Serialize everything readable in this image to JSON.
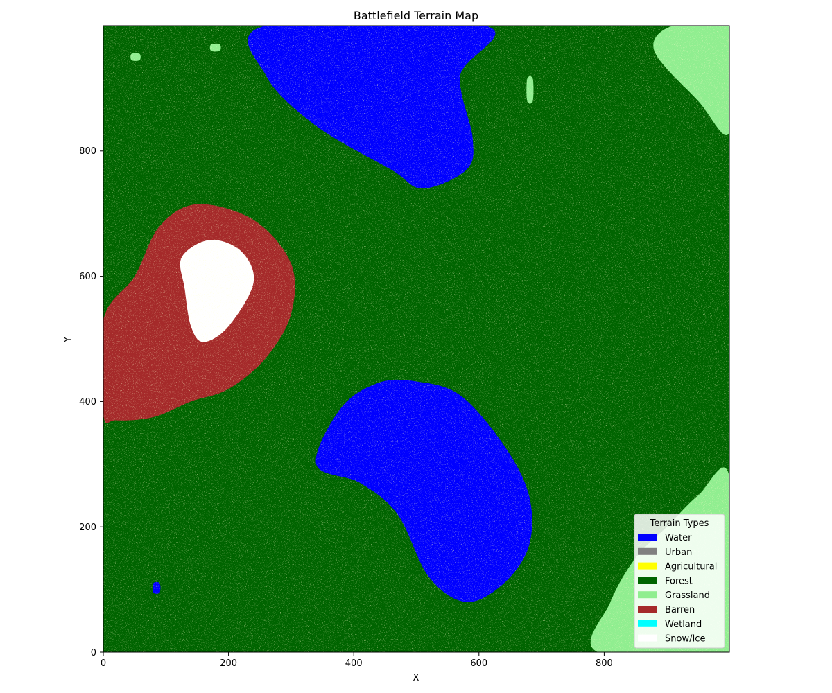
{
  "map": {
    "title": "Battlefield Terrain Map",
    "xlabel": "X",
    "ylabel": "Y",
    "xlim": [
      0,
      1000
    ],
    "ylim": [
      0,
      1000
    ],
    "xticks": [
      "0",
      "200",
      "400",
      "600",
      "800"
    ],
    "yticks": [
      "0",
      "200",
      "400",
      "600",
      "800"
    ],
    "background_terrain": "Forest"
  },
  "legend": {
    "title": "Terrain Types",
    "placement": "lower-right",
    "items": [
      {
        "label": "Water",
        "color": "#0000ff"
      },
      {
        "label": "Urban",
        "color": "#808080"
      },
      {
        "label": "Agricultural",
        "color": "#ffff00"
      },
      {
        "label": "Forest",
        "color": "#006400"
      },
      {
        "label": "Grassland",
        "color": "#90ee90"
      },
      {
        "label": "Barren",
        "color": "#a52a2a"
      },
      {
        "label": "Wetland",
        "color": "#00ffff"
      },
      {
        "label": "Snow/Ice",
        "color": "#ffffff"
      }
    ]
  },
  "chart_data": {
    "type": "heatmap",
    "title": "Battlefield Terrain Map",
    "xlabel": "X",
    "ylabel": "Y",
    "xlim": [
      0,
      1000
    ],
    "ylim": [
      0,
      1000
    ],
    "grid": false,
    "legend_title": "Terrain Types",
    "legend_placement": "lower-right",
    "regions": [
      {
        "terrain": "Water",
        "points": [
          [
            260,
            1000
          ],
          [
            610,
            1000
          ],
          [
            570,
            920
          ],
          [
            590,
            820
          ],
          [
            580,
            770
          ],
          [
            510,
            740
          ],
          [
            460,
            770
          ],
          [
            340,
            840
          ],
          [
            260,
            920
          ]
        ]
      },
      {
        "terrain": "Water",
        "points": [
          [
            500,
            432
          ],
          [
            570,
            410
          ],
          [
            640,
            330
          ],
          [
            680,
            250
          ],
          [
            680,
            170
          ],
          [
            640,
            110
          ],
          [
            580,
            80
          ],
          [
            520,
            120
          ],
          [
            470,
            220
          ],
          [
            410,
            270
          ],
          [
            340,
            300
          ],
          [
            380,
            390
          ],
          [
            440,
            430
          ]
        ]
      },
      {
        "terrain": "Barren",
        "points": [
          [
            0,
            530
          ],
          [
            50,
            600
          ],
          [
            90,
            680
          ],
          [
            150,
            715
          ],
          [
            240,
            690
          ],
          [
            300,
            620
          ],
          [
            300,
            540
          ],
          [
            260,
            470
          ],
          [
            200,
            420
          ],
          [
            140,
            400
          ],
          [
            80,
            375
          ],
          [
            20,
            370
          ],
          [
            0,
            380
          ]
        ]
      },
      {
        "terrain": "Snow/Ice",
        "points": [
          [
            170,
            658
          ],
          [
            220,
            640
          ],
          [
            240,
            590
          ],
          [
            200,
            520
          ],
          [
            160,
            495
          ],
          [
            140,
            520
          ],
          [
            130,
            580
          ],
          [
            125,
            630
          ]
        ]
      },
      {
        "terrain": "Grassland",
        "points": [
          [
            910,
            1000
          ],
          [
            1000,
            1000
          ],
          [
            1000,
            830
          ],
          [
            950,
            880
          ],
          [
            880,
            960
          ]
        ]
      },
      {
        "terrain": "Grassland",
        "points": [
          [
            790,
            0
          ],
          [
            1000,
            0
          ],
          [
            1000,
            280
          ],
          [
            950,
            250
          ],
          [
            900,
            200
          ],
          [
            850,
            150
          ],
          [
            810,
            80
          ]
        ]
      },
      {
        "terrain": "Water",
        "points": [
          [
            80,
            110
          ],
          [
            90,
            110
          ],
          [
            90,
            95
          ],
          [
            80,
            95
          ]
        ]
      },
      {
        "terrain": "Grassland",
        "points": [
          [
            45,
            955
          ],
          [
            58,
            955
          ],
          [
            58,
            945
          ],
          [
            45,
            945
          ]
        ]
      },
      {
        "terrain": "Grassland",
        "points": [
          [
            172,
            970
          ],
          [
            186,
            970
          ],
          [
            186,
            960
          ],
          [
            172,
            960
          ]
        ]
      },
      {
        "terrain": "Grassland",
        "points": [
          [
            677,
            915
          ],
          [
            686,
            915
          ],
          [
            686,
            880
          ],
          [
            677,
            880
          ]
        ]
      }
    ]
  }
}
